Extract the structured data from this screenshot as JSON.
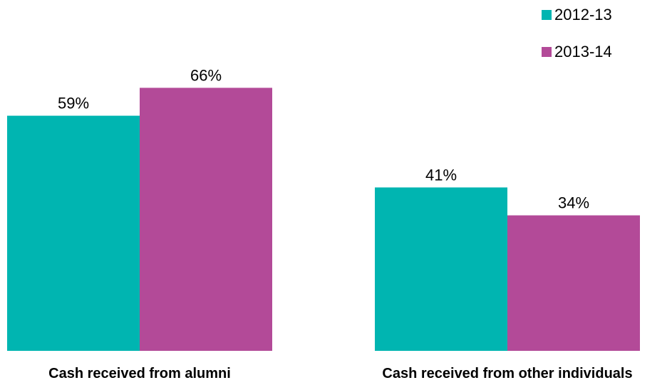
{
  "chart_data": {
    "type": "bar",
    "title": "",
    "xlabel": "",
    "ylabel": "",
    "ylim": [
      0,
      70
    ],
    "grid": false,
    "legend_position": "top-right",
    "categories": [
      "Cash received from alumni",
      "Cash received from other individuals"
    ],
    "series": [
      {
        "name": "2012-13",
        "color": "#00b5b1",
        "values": [
          59,
          41
        ],
        "value_labels": [
          "59%",
          "41%"
        ]
      },
      {
        "name": "2013-14",
        "color": "#b34a98",
        "values": [
          66,
          34
        ],
        "value_labels": [
          "66%",
          "34%"
        ]
      }
    ]
  }
}
